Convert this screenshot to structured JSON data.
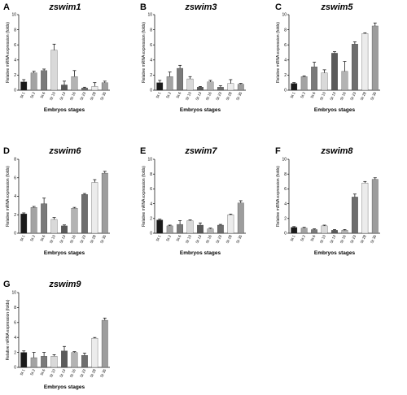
{
  "chart_data": [
    {
      "type": "bar",
      "letter": "A",
      "title": "zswim1",
      "ylabel": "Relative mRNA expression (folds)",
      "xlabel": "Embryos stages",
      "ylim": [
        0,
        10
      ],
      "yticks": [
        0,
        2,
        4,
        6,
        8,
        10
      ],
      "categories": [
        "St 1",
        "St 2",
        "St 6",
        "St 10",
        "St 13",
        "St 16",
        "St 23",
        "St 28",
        "St 35"
      ],
      "values": [
        1.1,
        2.3,
        2.6,
        5.3,
        0.7,
        1.8,
        0.3,
        0.5,
        1.0
      ],
      "errors": [
        0.3,
        0.2,
        0.2,
        0.8,
        0.5,
        0.8,
        0.1,
        0.5,
        0.2
      ]
    },
    {
      "type": "bar",
      "letter": "B",
      "title": "zswim3",
      "ylabel": "Relative mRNA expression (folds)",
      "xlabel": "Embryos stages",
      "ylim": [
        0,
        10
      ],
      "yticks": [
        0,
        2,
        4,
        6,
        8,
        10
      ],
      "categories": [
        "St 1",
        "St 2",
        "St 6",
        "St 10",
        "St 13",
        "St 16",
        "St 23",
        "St 28",
        "St 35"
      ],
      "values": [
        1.0,
        1.8,
        2.9,
        1.5,
        0.4,
        1.1,
        0.4,
        0.9,
        0.8
      ],
      "errors": [
        0.3,
        0.6,
        0.4,
        0.3,
        0.1,
        0.2,
        0.2,
        0.5,
        0.1
      ]
    },
    {
      "type": "bar",
      "letter": "C",
      "title": "zswim5",
      "ylabel": "Relative mRNA expression (folds)",
      "xlabel": "Embryos stages",
      "ylim": [
        0,
        10
      ],
      "yticks": [
        0,
        2,
        4,
        6,
        8,
        10
      ],
      "categories": [
        "St 1",
        "St 2",
        "St 6",
        "St 10",
        "St 13",
        "St 16",
        "St 23",
        "St 28",
        "St 35"
      ],
      "values": [
        0.9,
        1.8,
        3.1,
        2.3,
        4.9,
        2.5,
        6.1,
        7.5,
        8.5
      ],
      "errors": [
        0.1,
        0.1,
        0.6,
        0.4,
        0.2,
        1.3,
        0.3,
        0.1,
        0.4
      ]
    },
    {
      "type": "bar",
      "letter": "D",
      "title": "zswim6",
      "ylabel": "Relative mRNA expression (folds)",
      "xlabel": "Embryos stages",
      "ylim": [
        0,
        8
      ],
      "yticks": [
        0,
        2,
        4,
        6,
        8
      ],
      "categories": [
        "St 1",
        "St 2",
        "St 6",
        "St 10",
        "St 13",
        "St 16",
        "St 23",
        "St 28",
        "St 35"
      ],
      "values": [
        2.1,
        2.8,
        3.2,
        1.5,
        0.8,
        2.7,
        4.2,
        5.5,
        6.5
      ],
      "errors": [
        0.1,
        0.1,
        0.6,
        0.2,
        0.1,
        0.1,
        0.1,
        0.3,
        0.2
      ]
    },
    {
      "type": "bar",
      "letter": "E",
      "title": "zswim7",
      "ylabel": "Relative mRNA expression (folds)",
      "xlabel": "Embryos stages",
      "ylim": [
        0,
        10
      ],
      "yticks": [
        0,
        2,
        4,
        6,
        8,
        10
      ],
      "categories": [
        "St 1",
        "St 2",
        "St 6",
        "St 10",
        "St 13",
        "St 16",
        "St 23",
        "St 28",
        "St 35"
      ],
      "values": [
        1.8,
        1.0,
        1.2,
        1.7,
        1.1,
        0.6,
        1.1,
        2.5,
        4.1
      ],
      "errors": [
        0.1,
        0.1,
        0.5,
        0.1,
        0.3,
        0.1,
        0.1,
        0.1,
        0.3
      ]
    },
    {
      "type": "bar",
      "letter": "F",
      "title": "zswim8",
      "ylabel": "Relative mRNA expression (folds)",
      "xlabel": "Embryos stages",
      "ylim": [
        0,
        10
      ],
      "yticks": [
        0,
        2,
        4,
        6,
        8,
        10
      ],
      "categories": [
        "St 1",
        "St 2",
        "St 6",
        "St 10",
        "St 13",
        "St 16",
        "St 23",
        "St 28",
        "St 35"
      ],
      "values": [
        0.8,
        0.7,
        0.5,
        1.0,
        0.4,
        0.4,
        4.9,
        6.8,
        7.3
      ],
      "errors": [
        0.1,
        0.1,
        0.1,
        0.1,
        0.1,
        0.1,
        0.4,
        0.2,
        0.2
      ]
    },
    {
      "type": "bar",
      "letter": "G",
      "title": "zswim9",
      "ylabel": "Relative mRNA expression (folds)",
      "xlabel": "Embryos stages",
      "ylim": [
        0,
        10
      ],
      "yticks": [
        0,
        2,
        4,
        6,
        8,
        10
      ],
      "categories": [
        "St 1",
        "St 2",
        "St 6",
        "St 10",
        "St 13",
        "St 16",
        "St 23",
        "St 28",
        "St 35"
      ],
      "values": [
        2.0,
        1.3,
        1.5,
        1.5,
        2.2,
        2.0,
        1.6,
        3.9,
        6.3
      ],
      "errors": [
        0.2,
        0.7,
        0.5,
        0.2,
        0.6,
        0.1,
        0.3,
        0.1,
        0.3
      ]
    }
  ],
  "bar_colors": [
    "#1a1a1a",
    "#a3a3a3",
    "#7a7a7a",
    "#d9d9d9",
    "#5a5a5a",
    "#b3b3b3",
    "#6e6e6e",
    "#ececec",
    "#9d9d9d"
  ]
}
